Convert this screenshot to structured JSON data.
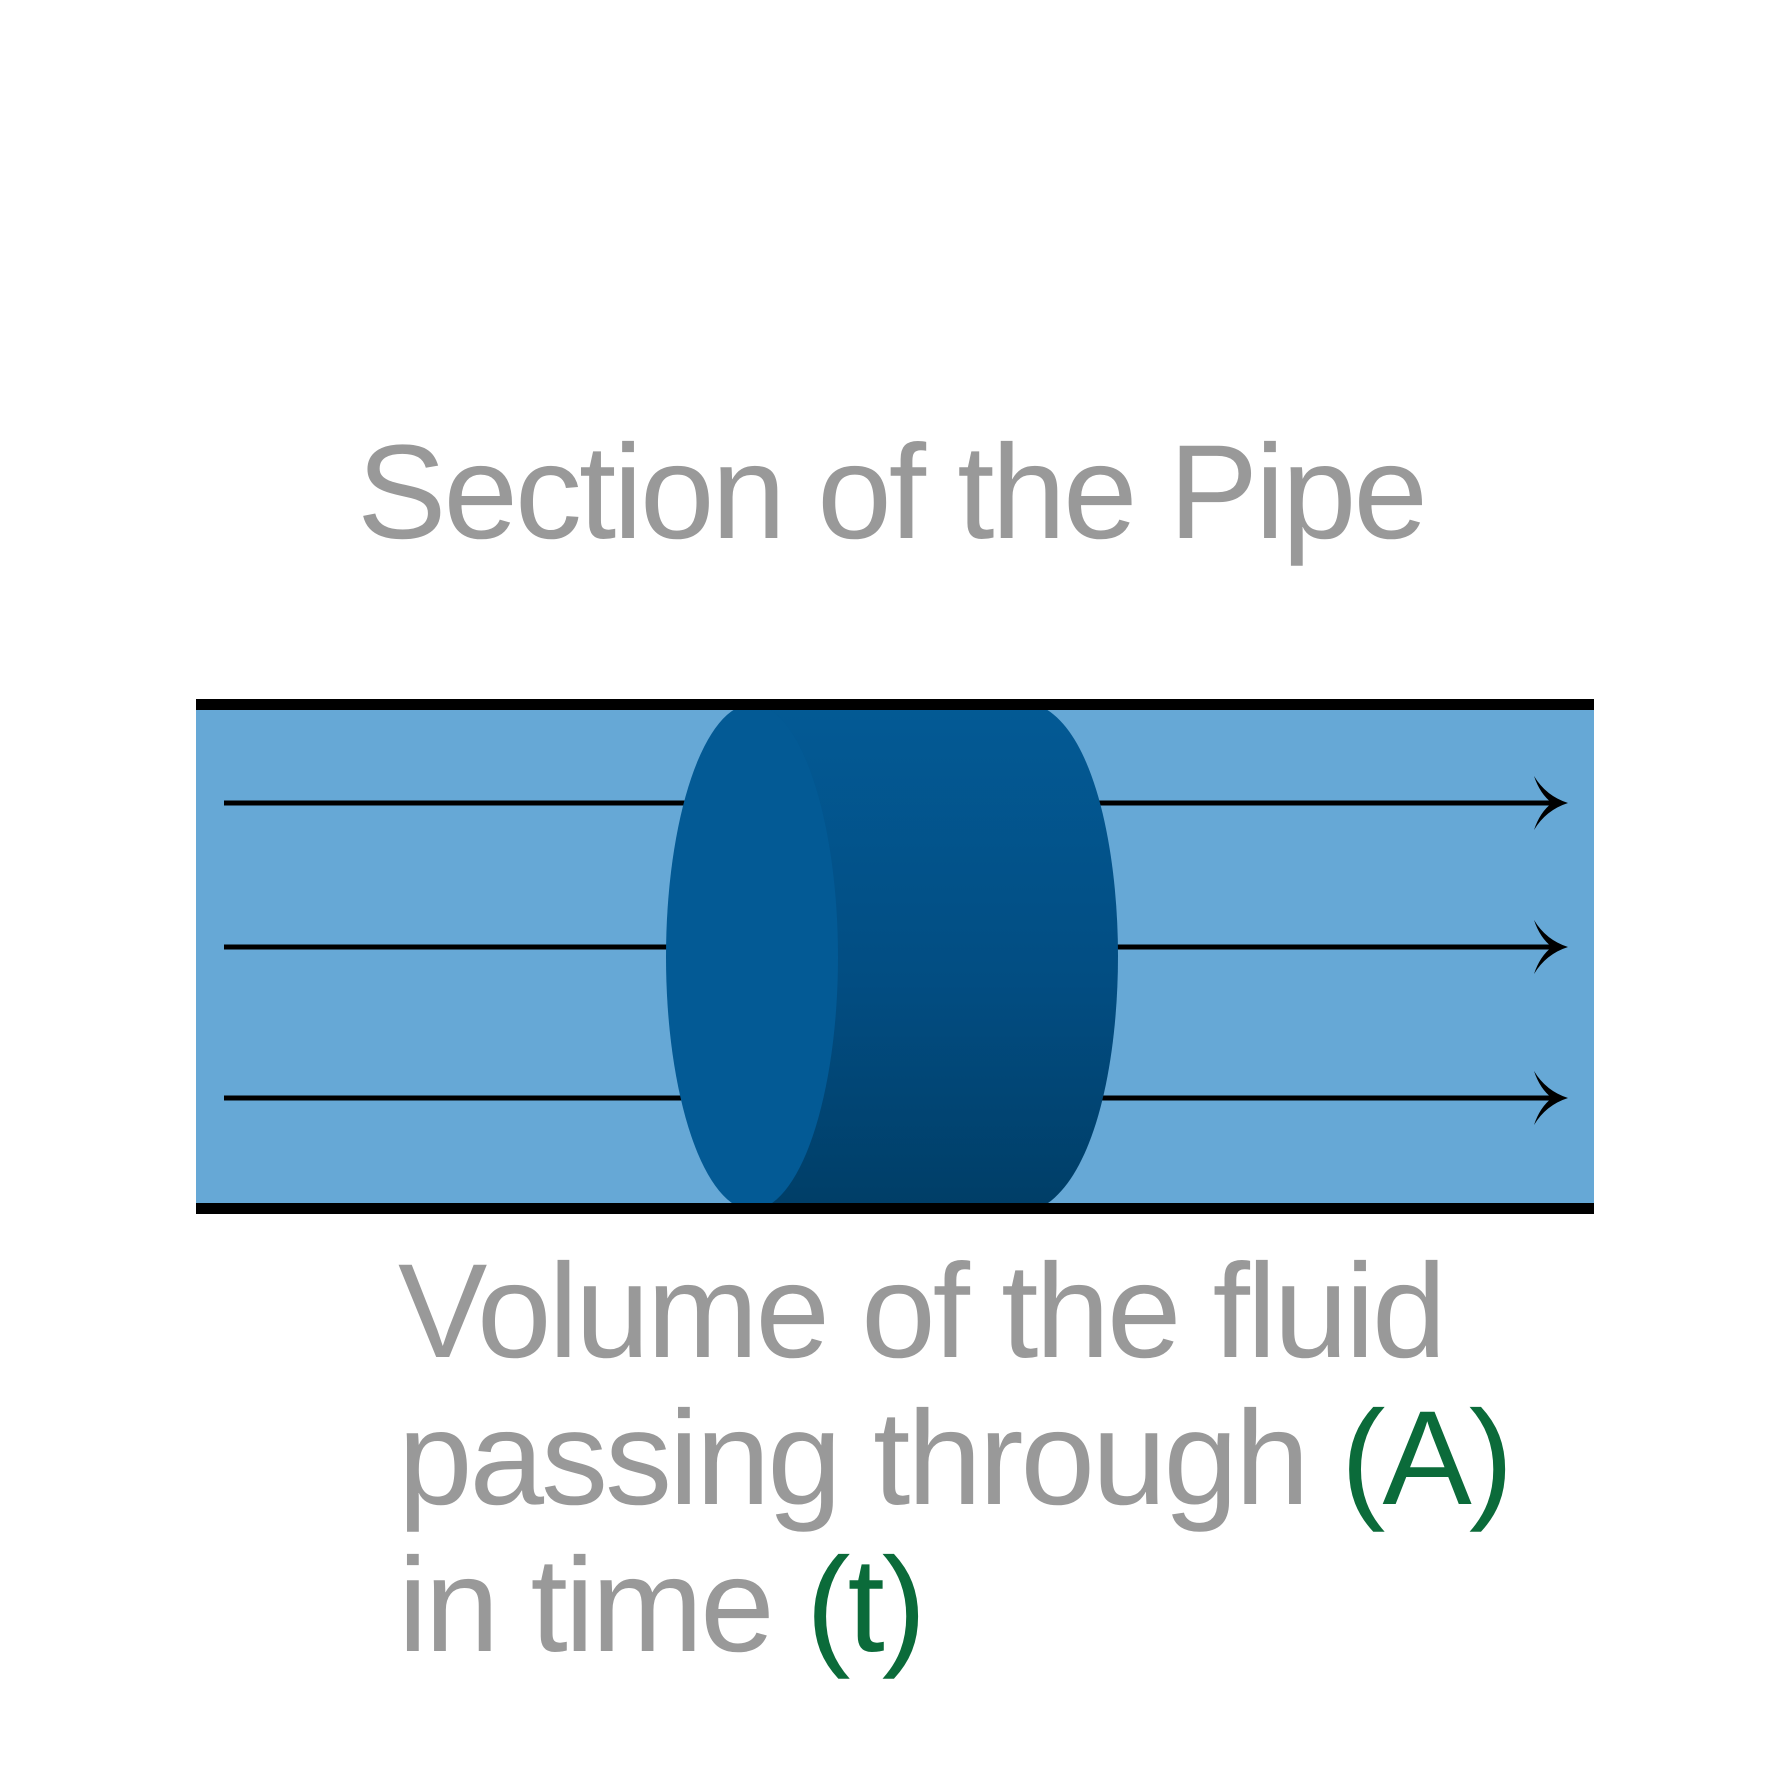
{
  "title": "Section of the Pipe",
  "caption": {
    "line1": "Volume of the fluid",
    "line2_text": "passing through",
    "line2_var": "(A)",
    "line3_text": "in time",
    "line3_var": "(t)"
  },
  "colors": {
    "pipe_fluid": "#66a8d6",
    "pipe_wall": "#000000",
    "fluid_volume": "#035a95",
    "fluid_volume_dark": "#003e67",
    "text": "#999999",
    "variable_text": "#0b6b3a",
    "flow_arrow": "#000000"
  },
  "flow_arrows": {
    "count": 3,
    "direction": "right"
  }
}
